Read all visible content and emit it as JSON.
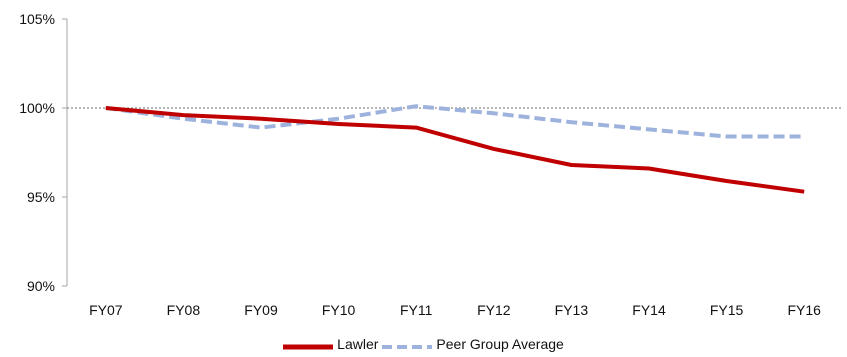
{
  "chart_data": {
    "type": "line",
    "title": "",
    "xlabel": "",
    "ylabel": "",
    "categories": [
      "FY07",
      "FY08",
      "FY09",
      "FY10",
      "FY11",
      "FY12",
      "FY13",
      "FY14",
      "FY15",
      "FY16"
    ],
    "ylim": [
      90,
      105
    ],
    "y_ticks": [
      "90%",
      "95%",
      "100%",
      "105%"
    ],
    "y_tick_values": [
      90,
      95,
      100,
      105
    ],
    "reference_line": 100,
    "grid": false,
    "legend_position": "bottom",
    "series": [
      {
        "name": "Lawler",
        "color": "#c00000",
        "style": "solid",
        "values": [
          100.0,
          99.6,
          99.4,
          99.1,
          98.9,
          97.7,
          96.8,
          96.6,
          95.9,
          95.3
        ]
      },
      {
        "name": "Peer Group Average",
        "color": "#9db3dd",
        "style": "dashed",
        "values": [
          100.0,
          99.4,
          98.9,
          99.4,
          100.1,
          99.7,
          99.2,
          98.8,
          98.4,
          98.4
        ]
      }
    ]
  }
}
